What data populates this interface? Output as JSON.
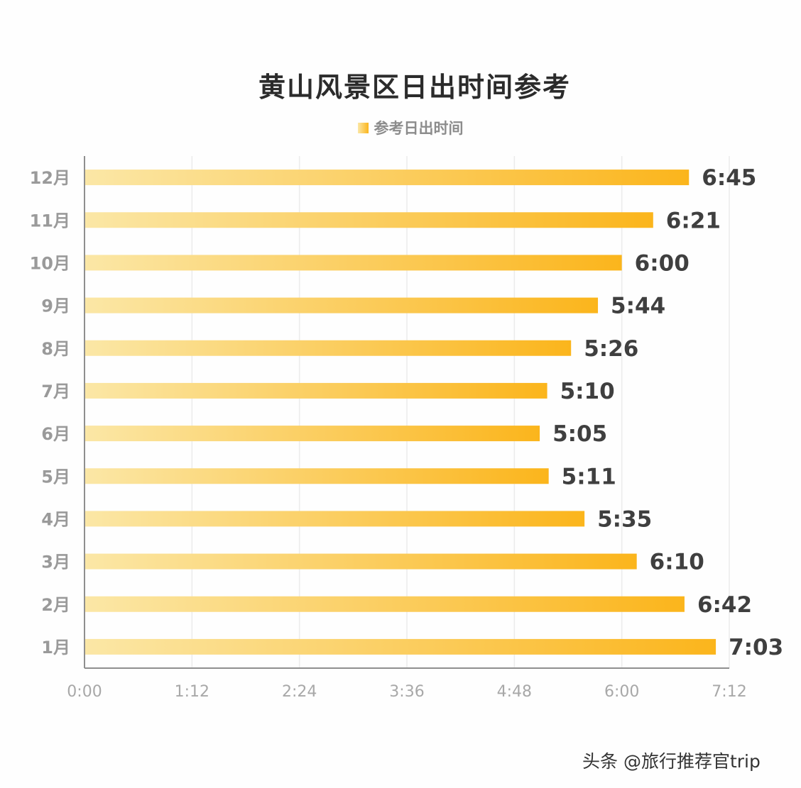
{
  "chart_data": {
    "type": "bar",
    "orientation": "horizontal",
    "title": "黄山风景区日出时间参考",
    "legend_position": "top-center",
    "categories": [
      "1月",
      "2月",
      "3月",
      "4月",
      "5月",
      "6月",
      "7月",
      "8月",
      "9月",
      "10月",
      "11月",
      "12月"
    ],
    "series": [
      {
        "name": "参考日出时间",
        "values": [
          423,
          402,
          370,
          335,
          311,
          305,
          310,
          326,
          344,
          360,
          381,
          405
        ],
        "labels": [
          "7:03",
          "6:42",
          "6:10",
          "5:35",
          "5:11",
          "5:05",
          "5:10",
          "5:26",
          "5:44",
          "6:00",
          "6:21",
          "6:45"
        ]
      }
    ],
    "value_unit": "minutes after 0:00",
    "xlim": [
      0,
      432
    ],
    "x_ticks": [
      0,
      72,
      144,
      216,
      288,
      360,
      432
    ],
    "x_tick_labels": [
      "0:00",
      "1:12",
      "2:24",
      "3:36",
      "4:48",
      "6:00",
      "7:12"
    ],
    "grid": "vertical",
    "bar_color_start": "#fbe7a6",
    "bar_color_end": "#fbb51c"
  },
  "watermark": "头条 @旅行推荐官trip"
}
